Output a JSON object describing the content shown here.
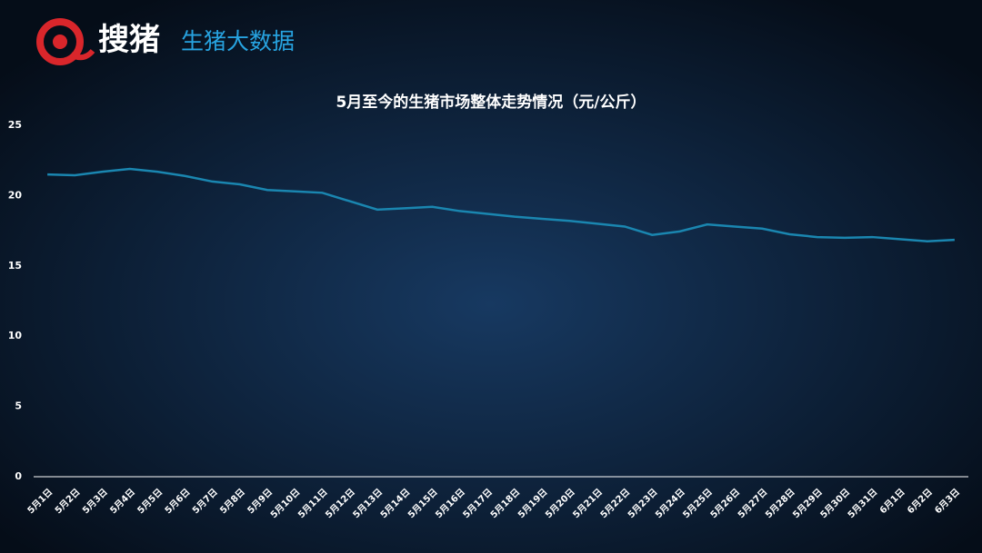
{
  "header": {
    "brand": "搜猪",
    "subtitle": "生猪大数据"
  },
  "chart_data": {
    "type": "line",
    "title": "5月至今的生猪市场整体走势情况（元/公斤）",
    "categories": [
      "5月1日",
      "5月2日",
      "5月3日",
      "5月4日",
      "5月5日",
      "5月6日",
      "5月7日",
      "5月8日",
      "5月9日",
      "5月10日",
      "5月11日",
      "5月12日",
      "5月13日",
      "5月14日",
      "5月15日",
      "5月16日",
      "5月17日",
      "5月18日",
      "5月19日",
      "5月20日",
      "5月21日",
      "5月22日",
      "5月23日",
      "5月24日",
      "5月25日",
      "5月26日",
      "5月27日",
      "5月28日",
      "5月29日",
      "5月30日",
      "5月31日",
      "6月1日",
      "6月2日",
      "6月3日"
    ],
    "values": [
      21.5,
      21.45,
      21.7,
      21.9,
      21.7,
      21.4,
      21.0,
      20.8,
      20.4,
      20.3,
      20.2,
      19.6,
      19.0,
      19.1,
      19.2,
      18.9,
      18.7,
      18.5,
      18.35,
      18.2,
      18.0,
      17.8,
      17.2,
      17.45,
      17.95,
      17.8,
      17.65,
      17.25,
      17.05,
      17.0,
      17.05,
      16.9,
      16.75,
      16.85
    ],
    "color": "#1a86b0",
    "ylim": [
      0,
      25
    ],
    "yticks": [
      0,
      5,
      10,
      15,
      20,
      25
    ],
    "grid": false
  }
}
